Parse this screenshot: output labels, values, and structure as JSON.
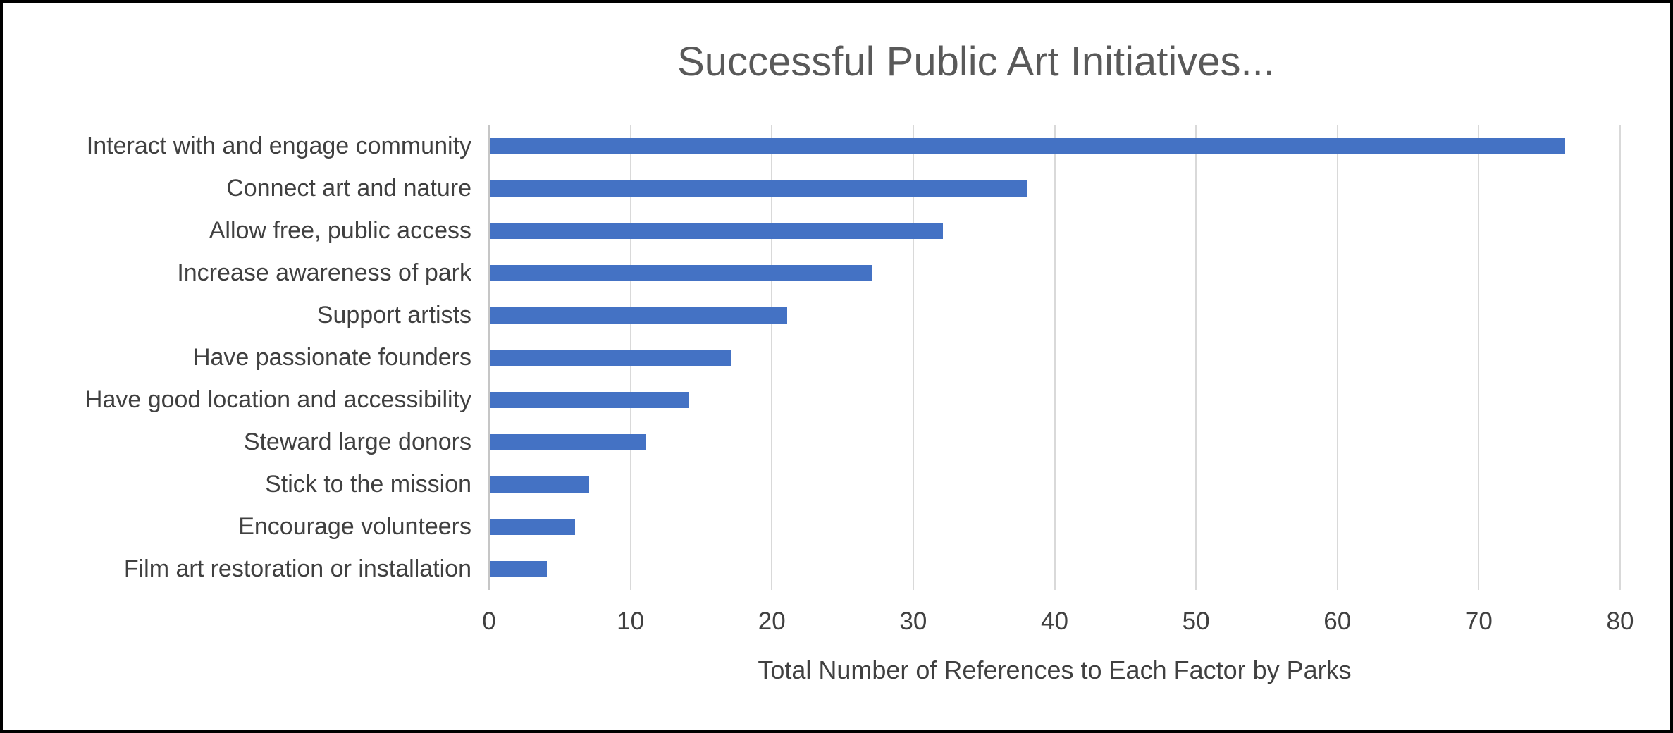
{
  "chart_data": {
    "type": "bar",
    "orientation": "horizontal",
    "title": "Successful Public Art Initiatives...",
    "xlabel": "Total Number of References to Each Factor by Parks",
    "categories": [
      "Interact with and engage community",
      "Connect art and nature",
      "Allow free, public access",
      "Increase awareness of park",
      "Support artists",
      "Have passionate founders",
      "Have good location and accessibility",
      "Steward large donors",
      "Stick to the mission",
      "Encourage volunteers",
      "Film art restoration or installation"
    ],
    "values": [
      76,
      38,
      32,
      27,
      21,
      17,
      14,
      11,
      7,
      6,
      4
    ],
    "xlim": [
      0,
      80
    ],
    "xticks": [
      0,
      10,
      20,
      30,
      40,
      50,
      60,
      70,
      80
    ],
    "grid": true,
    "legend": false,
    "colors": {
      "bar": "#4472C4",
      "gridline": "#D9D9D9",
      "axis_line": "#C6C6C6",
      "text": "#404040",
      "title": "#595959",
      "border": "#000000"
    }
  }
}
